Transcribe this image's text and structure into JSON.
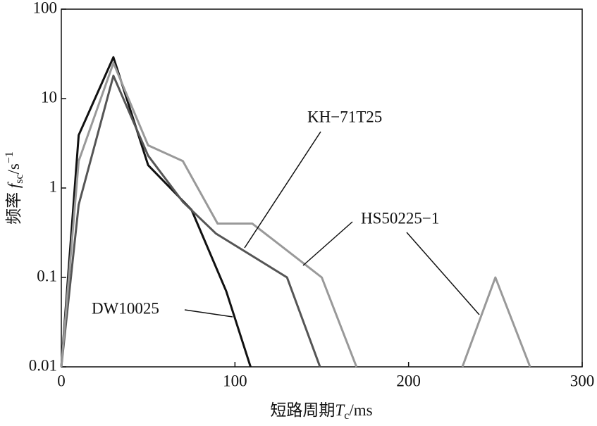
{
  "chart_data": {
    "type": "line",
    "x_label": {
      "text": "短路周期",
      "symbol": "T",
      "subscript": "c",
      "unit": "/ms"
    },
    "y_label": {
      "text": "频率 ",
      "symbol": "f",
      "subscript": "sc",
      "unit": "/s",
      "exponent": "−1"
    },
    "xlim": [
      0,
      300
    ],
    "xticks": [
      0,
      100,
      200,
      300
    ],
    "ylim": [
      0.01,
      100
    ],
    "yticks": [
      0.01,
      0.1,
      1,
      10,
      100
    ],
    "log_y": true,
    "series": [
      {
        "name": "DW10025",
        "color": "#111111",
        "x": [
          0,
          10,
          30,
          50,
          75,
          95,
          109
        ],
        "values": [
          0.01,
          3.9,
          29,
          1.8,
          0.57,
          0.07,
          0.01
        ]
      },
      {
        "name": "KH−71T25",
        "color": "#555555",
        "x": [
          0,
          10,
          30,
          50,
          70,
          89,
          130,
          149
        ],
        "values": [
          0.01,
          0.65,
          18,
          2.3,
          0.7,
          0.31,
          0.1,
          0.01
        ]
      },
      {
        "name": "HS50225−1",
        "color": "#999999",
        "x": [
          0,
          10,
          30,
          50,
          70,
          90,
          110,
          150,
          170,
          null,
          231,
          250,
          270
        ],
        "values": [
          0.01,
          2,
          25,
          3,
          2,
          0.4,
          0.4,
          0.1,
          0.01,
          null,
          0.01,
          0.1,
          0.01
        ]
      }
    ]
  }
}
